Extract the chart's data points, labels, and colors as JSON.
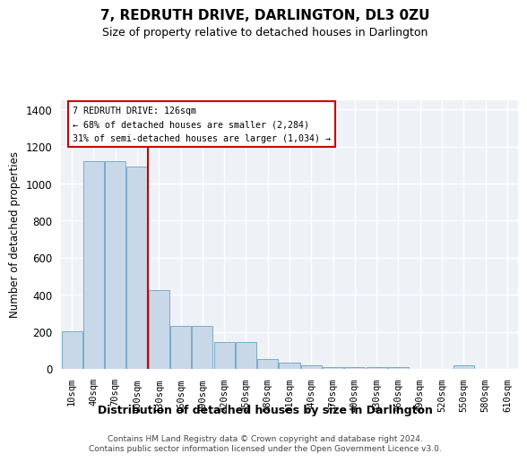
{
  "title": "7, REDRUTH DRIVE, DARLINGTON, DL3 0ZU",
  "subtitle": "Size of property relative to detached houses in Darlington",
  "xlabel": "Distribution of detached houses by size in Darlington",
  "ylabel": "Number of detached properties",
  "categories": [
    "10sqm",
    "40sqm",
    "70sqm",
    "100sqm",
    "130sqm",
    "160sqm",
    "190sqm",
    "220sqm",
    "250sqm",
    "280sqm",
    "310sqm",
    "340sqm",
    "370sqm",
    "400sqm",
    "430sqm",
    "460sqm",
    "490sqm",
    "520sqm",
    "550sqm",
    "580sqm",
    "610sqm"
  ],
  "values": [
    205,
    1120,
    1120,
    1090,
    425,
    230,
    230,
    145,
    145,
    55,
    35,
    20,
    10,
    10,
    10,
    10,
    0,
    0,
    20,
    0,
    0
  ],
  "bar_color": "#c8d8e8",
  "bar_edge_color": "#7aaaca",
  "vline_x": 3.5,
  "vline_color": "#cc0000",
  "annotation_line1": "7 REDRUTH DRIVE: 126sqm",
  "annotation_line2": "← 68% of detached houses are smaller (2,284)",
  "annotation_line3": "31% of semi-detached houses are larger (1,034) →",
  "ylim": [
    0,
    1450
  ],
  "yticks": [
    0,
    200,
    400,
    600,
    800,
    1000,
    1200,
    1400
  ],
  "background_color": "#eef2f7",
  "grid_color": "#ffffff",
  "footer1": "Contains HM Land Registry data © Crown copyright and database right 2024.",
  "footer2": "Contains public sector information licensed under the Open Government Licence v3.0."
}
